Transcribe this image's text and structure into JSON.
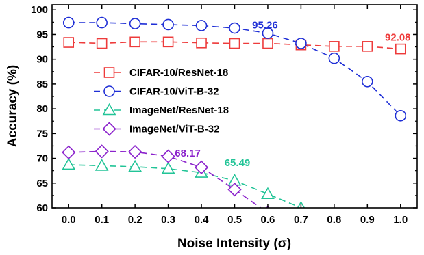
{
  "chart_data": {
    "type": "line",
    "xlabel": "Noise Intensity (σ)",
    "ylabel": "Accuracy (%)",
    "xlim": [
      -0.05,
      1.05
    ],
    "ylim": [
      60,
      101
    ],
    "x": [
      0.0,
      0.1,
      0.2,
      0.3,
      0.4,
      0.5,
      0.6,
      0.7,
      0.8,
      0.9,
      1.0
    ],
    "x_tick_labels": [
      "0.0",
      "0.1",
      "0.2",
      "0.3",
      "0.4",
      "0.5",
      "0.6",
      "0.7",
      "0.8",
      "0.9",
      "1.0"
    ],
    "y_ticks": [
      60,
      65,
      70,
      75,
      80,
      85,
      90,
      95,
      100
    ],
    "y_tick_labels": [
      "60",
      "65",
      "70",
      "75",
      "80",
      "85",
      "90",
      "95",
      "100"
    ],
    "legend_position": "center-left",
    "series": [
      {
        "name": "CIFAR-10/ResNet-18",
        "color": "#ee3b3b",
        "marker": "square",
        "values": [
          93.4,
          93.2,
          93.5,
          93.5,
          93.3,
          93.2,
          93.2,
          92.9,
          92.6,
          92.6,
          92.08
        ]
      },
      {
        "name": "CIFAR-10/ViT-B-32",
        "color": "#1f2fd6",
        "marker": "circle",
        "values": [
          97.4,
          97.4,
          97.2,
          97.0,
          96.8,
          96.3,
          95.26,
          93.2,
          90.2,
          85.5,
          78.6
        ]
      },
      {
        "name": "ImageNet/ResNet-18",
        "color": "#22c497",
        "marker": "triangle",
        "values": [
          68.7,
          68.5,
          68.3,
          67.9,
          67.1,
          65.49,
          62.8,
          60.0,
          null,
          null,
          null
        ]
      },
      {
        "name": "ImageNet/ViT-B-32",
        "color": "#8b22cc",
        "marker": "diamond",
        "values": [
          71.2,
          71.4,
          71.3,
          70.4,
          68.17,
          63.7,
          59.0,
          null,
          null,
          null,
          null
        ]
      }
    ],
    "annotations": [
      {
        "text": "95.26",
        "series": 1,
        "x": 0.6,
        "y": 95.26,
        "color": "#1f2fd6"
      },
      {
        "text": "92.08",
        "series": 0,
        "x": 1.0,
        "y": 92.08,
        "color": "#ee3b3b"
      },
      {
        "text": "68.17",
        "series": 3,
        "x": 0.4,
        "y": 68.17,
        "color": "#8b22cc"
      },
      {
        "text": "65.49",
        "series": 2,
        "x": 0.5,
        "y": 65.49,
        "color": "#22c497"
      }
    ]
  }
}
